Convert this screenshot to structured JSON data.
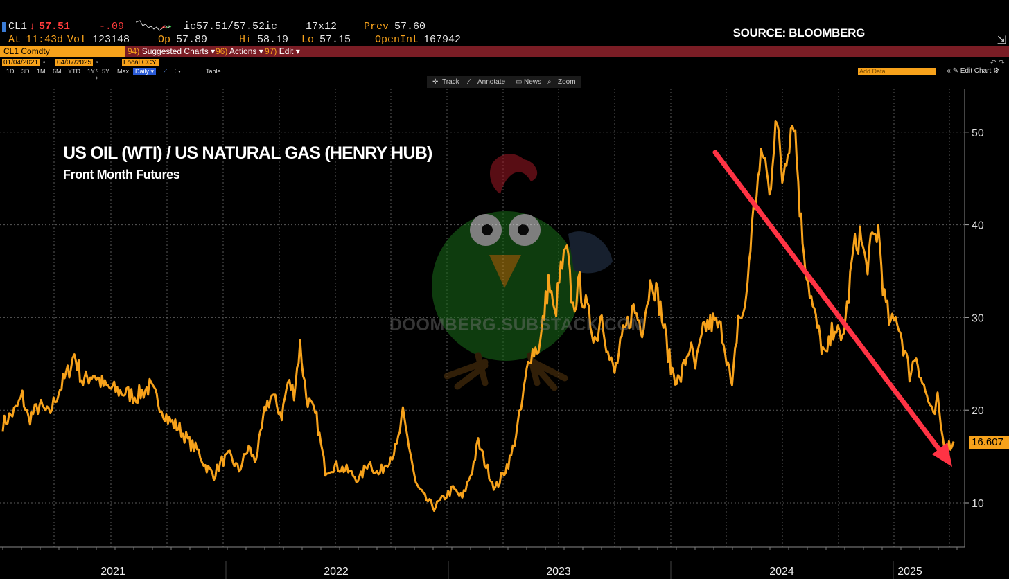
{
  "quote": {
    "ticker": "CL1",
    "last_arrow": "↓",
    "last": "57.51",
    "change": "-.09",
    "bid_ask": "ic57.51/57.52ic",
    "size": "17x12",
    "prev_label": "Prev",
    "prev": "57.60",
    "time_label": "At",
    "time": "11:43d",
    "vol_label": "Vol",
    "vol": "123148",
    "open_label": "Op",
    "open": "57.89",
    "high_label": "Hi",
    "high": "58.19",
    "low_label": "Lo",
    "low": "57.15",
    "oi_label": "OpenInt",
    "oi": "167942"
  },
  "source": "SOURCE: BLOOMBERG",
  "menu": {
    "security": "CL1 Comdty",
    "items": [
      {
        "num": "94)",
        "label": "Suggested Charts ▾"
      },
      {
        "num": "96)",
        "label": "Actions ▾"
      },
      {
        "num": "97)",
        "label": "Edit ▾"
      }
    ]
  },
  "controls": {
    "start_date": "01/04/2021",
    "end_date": "04/07/2025",
    "currency": "Local CCY",
    "periods": [
      "1D",
      "3D",
      "1M",
      "6M",
      "YTD",
      "1Y",
      "5Y",
      "Max"
    ],
    "frequency": "Daily ▾",
    "table": "Table",
    "add_data": "Add Data",
    "edit_chart": "Edit Chart",
    "toolbar": [
      "Track",
      "Annotate",
      "News",
      "Zoom"
    ]
  },
  "watermark": "DOOMBERG.SUBSTACK.COM",
  "colors": {
    "series": "#f7a21b",
    "trend_arrow": "#ff3344",
    "grid": "#5a5a5a",
    "menubar": "#7a1d25"
  },
  "chart_data": {
    "type": "line",
    "title": "US OIL (WTI) / US NATURAL GAS (HENRY HUB)",
    "subtitle": "Front Month Futures",
    "x_ticks": [
      "2021",
      "2022",
      "2023",
      "2024",
      "2025"
    ],
    "y_ticks": [
      10,
      20,
      30,
      40,
      50
    ],
    "ylim": [
      4,
      55
    ],
    "xlim": [
      "2021-01-04",
      "2025-04-07"
    ],
    "grid": true,
    "last_value": "16.607",
    "series": [
      {
        "values": [
          [
            "2021-01-04",
            18.5
          ],
          [
            "2021-01-25",
            20.0
          ],
          [
            "2021-02-05",
            21.5
          ],
          [
            "2021-02-15",
            19.0
          ],
          [
            "2021-03-05",
            20.5
          ],
          [
            "2021-03-20",
            19.5
          ],
          [
            "2021-04-05",
            22.0
          ],
          [
            "2021-04-20",
            24.0
          ],
          [
            "2021-05-01",
            26.0
          ],
          [
            "2021-05-15",
            23.0
          ],
          [
            "2021-06-01",
            24.0
          ],
          [
            "2021-06-20",
            22.5
          ],
          [
            "2021-07-15",
            22.0
          ],
          [
            "2021-08-10",
            21.5
          ],
          [
            "2021-09-01",
            22.5
          ],
          [
            "2021-09-15",
            21.0
          ],
          [
            "2021-10-01",
            19.0
          ],
          [
            "2021-10-20",
            18.0
          ],
          [
            "2021-11-05",
            16.5
          ],
          [
            "2021-11-20",
            15.5
          ],
          [
            "2021-12-01",
            14.0
          ],
          [
            "2021-12-15",
            13.0
          ],
          [
            "2021-12-28",
            14.5
          ],
          [
            "2022-01-10",
            15.0
          ],
          [
            "2022-01-25",
            13.5
          ],
          [
            "2022-02-10",
            16.0
          ],
          [
            "2022-02-20",
            14.5
          ],
          [
            "2022-03-01",
            17.0
          ],
          [
            "2022-03-10",
            20.5
          ],
          [
            "2022-03-20",
            21.5
          ],
          [
            "2022-04-05",
            19.5
          ],
          [
            "2022-04-15",
            23.0
          ],
          [
            "2022-04-25",
            22.0
          ],
          [
            "2022-05-05",
            27.0
          ],
          [
            "2022-05-15",
            21.5
          ],
          [
            "2022-06-01",
            19.0
          ],
          [
            "2022-06-15",
            13.5
          ],
          [
            "2022-07-01",
            14.0
          ],
          [
            "2022-07-20",
            13.5
          ],
          [
            "2022-08-10",
            12.5
          ],
          [
            "2022-08-25",
            14.5
          ],
          [
            "2022-09-10",
            13.0
          ],
          [
            "2022-09-25",
            14.5
          ],
          [
            "2022-10-10",
            16.0
          ],
          [
            "2022-10-20",
            19.5
          ],
          [
            "2022-11-01",
            15.5
          ],
          [
            "2022-11-10",
            12.0
          ],
          [
            "2022-11-25",
            10.5
          ],
          [
            "2022-12-10",
            9.5
          ],
          [
            "2022-12-25",
            10.5
          ],
          [
            "2023-01-10",
            11.5
          ],
          [
            "2023-01-25",
            10.5
          ],
          [
            "2023-02-10",
            13.5
          ],
          [
            "2023-02-20",
            16.5
          ],
          [
            "2023-03-05",
            14.0
          ],
          [
            "2023-03-20",
            11.5
          ],
          [
            "2023-04-01",
            13.0
          ],
          [
            "2023-04-15",
            15.0
          ],
          [
            "2023-05-01",
            20.0
          ],
          [
            "2023-05-15",
            26.0
          ],
          [
            "2023-06-01",
            27.0
          ],
          [
            "2023-06-15",
            34.0
          ],
          [
            "2023-06-25",
            30.0
          ],
          [
            "2023-07-05",
            35.0
          ],
          [
            "2023-07-15",
            37.0
          ],
          [
            "2023-07-25",
            31.0
          ],
          [
            "2023-08-05",
            33.5
          ],
          [
            "2023-08-20",
            30.0
          ],
          [
            "2023-09-01",
            27.5
          ],
          [
            "2023-09-10",
            31.0
          ],
          [
            "2023-09-20",
            26.0
          ],
          [
            "2023-10-01",
            24.0
          ],
          [
            "2023-10-15",
            28.0
          ],
          [
            "2023-11-01",
            31.0
          ],
          [
            "2023-11-15",
            29.0
          ],
          [
            "2023-12-01",
            34.5
          ],
          [
            "2023-12-15",
            31.0
          ],
          [
            "2024-01-01",
            24.5
          ],
          [
            "2024-01-15",
            23.0
          ],
          [
            "2024-02-01",
            27.0
          ],
          [
            "2024-02-10",
            24.5
          ],
          [
            "2024-02-25",
            29.0
          ],
          [
            "2024-03-10",
            29.5
          ],
          [
            "2024-03-25",
            28.5
          ],
          [
            "2024-04-01",
            26.0
          ],
          [
            "2024-04-10",
            22.0
          ],
          [
            "2024-04-20",
            30.0
          ],
          [
            "2024-05-01",
            30.5
          ],
          [
            "2024-05-10",
            38.0
          ],
          [
            "2024-05-20",
            44.0
          ],
          [
            "2024-06-01",
            48.0
          ],
          [
            "2024-06-10",
            43.0
          ],
          [
            "2024-06-20",
            52.0
          ],
          [
            "2024-07-01",
            45.0
          ],
          [
            "2024-07-10",
            49.0
          ],
          [
            "2024-07-20",
            52.0
          ],
          [
            "2024-08-01",
            40.0
          ],
          [
            "2024-08-10",
            35.0
          ],
          [
            "2024-08-20",
            31.0
          ],
          [
            "2024-09-01",
            27.5
          ],
          [
            "2024-09-10",
            25.5
          ],
          [
            "2024-09-25",
            29.5
          ],
          [
            "2024-10-05",
            27.0
          ],
          [
            "2024-10-15",
            31.0
          ],
          [
            "2024-10-25",
            37.0
          ],
          [
            "2024-11-05",
            39.0
          ],
          [
            "2024-11-15",
            35.5
          ],
          [
            "2024-11-25",
            38.0
          ],
          [
            "2024-12-05",
            39.5
          ],
          [
            "2024-12-15",
            32.0
          ],
          [
            "2024-12-25",
            29.0
          ],
          [
            "2025-01-05",
            30.0
          ],
          [
            "2025-01-15",
            27.0
          ],
          [
            "2025-01-25",
            24.0
          ],
          [
            "2025-02-05",
            26.0
          ],
          [
            "2025-02-15",
            23.0
          ],
          [
            "2025-02-25",
            21.0
          ],
          [
            "2025-03-05",
            19.0
          ],
          [
            "2025-03-12",
            21.0
          ],
          [
            "2025-03-20",
            17.0
          ],
          [
            "2025-03-28",
            16.0
          ],
          [
            "2025-04-07",
            16.607
          ]
        ]
      }
    ]
  }
}
